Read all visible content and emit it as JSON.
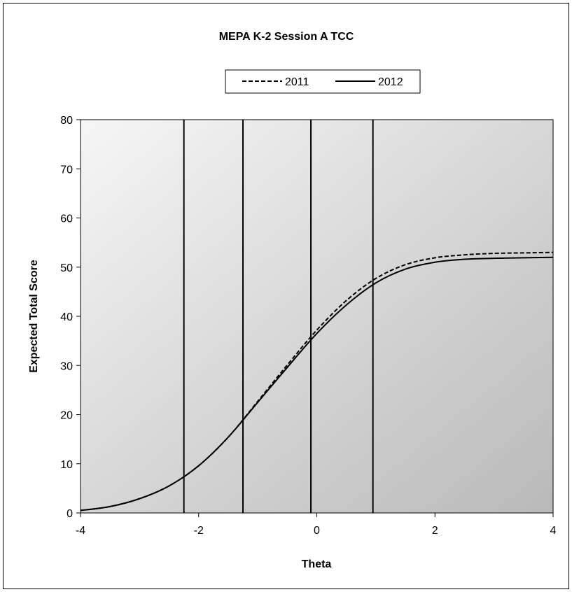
{
  "chart_data": {
    "type": "line",
    "title": "MEPA K-2 Session A TCC",
    "xlabel": "Theta",
    "ylabel": "Expected Total Score",
    "xlim": [
      -4,
      4
    ],
    "ylim": [
      0,
      80
    ],
    "xticks": [
      -4,
      -2,
      0,
      2,
      4
    ],
    "yticks": [
      0,
      10,
      20,
      30,
      40,
      50,
      60,
      70,
      80
    ],
    "grid": false,
    "legend_position": "top-center",
    "cut_scores": [
      -2.25,
      -1.25,
      -0.1,
      0.95
    ],
    "series": [
      {
        "name": "2011",
        "line_style": "dashed",
        "x": [
          -4.0,
          -3.5,
          -3.0,
          -2.5,
          -2.0,
          -1.5,
          -1.0,
          -0.5,
          0.0,
          0.5,
          1.0,
          1.5,
          2.0,
          2.5,
          3.0,
          3.5,
          4.0
        ],
        "y": [
          0.5,
          1.3,
          2.9,
          5.5,
          9.6,
          15.4,
          22.7,
          30.1,
          37.2,
          43.2,
          47.7,
          50.5,
          51.9,
          52.5,
          52.8,
          52.9,
          53.0
        ]
      },
      {
        "name": "2012",
        "line_style": "solid",
        "x": [
          -4.0,
          -3.5,
          -3.0,
          -2.5,
          -2.0,
          -1.5,
          -1.0,
          -0.5,
          0.0,
          0.5,
          1.0,
          1.5,
          2.0,
          2.5,
          3.0,
          3.5,
          4.0
        ],
        "y": [
          0.5,
          1.3,
          2.9,
          5.5,
          9.6,
          15.4,
          22.5,
          29.6,
          36.5,
          42.3,
          46.8,
          49.6,
          51.0,
          51.6,
          51.8,
          51.9,
          52.0
        ]
      }
    ]
  }
}
